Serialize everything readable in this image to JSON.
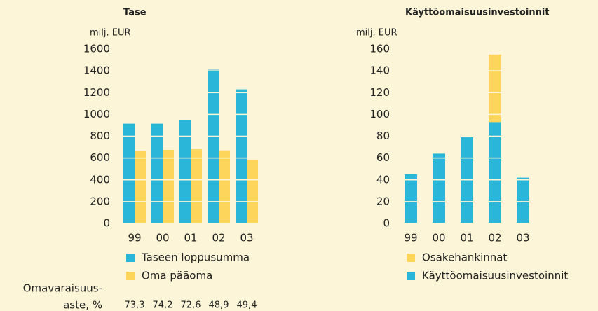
{
  "chart_data": [
    {
      "type": "bar",
      "title": "Tase",
      "ylabel": "milj. EUR",
      "categories": [
        "99",
        "00",
        "01",
        "02",
        "03"
      ],
      "series": [
        {
          "name": "Taseen loppusumma",
          "color": "#29b6d8",
          "values": [
            915,
            915,
            950,
            1410,
            1230
          ]
        },
        {
          "name": "Oma pääoma",
          "color": "#fdd55a",
          "values": [
            665,
            675,
            680,
            670,
            585
          ]
        }
      ],
      "ylim": [
        0,
        1600
      ],
      "yticks": [
        0,
        200,
        400,
        600,
        800,
        1000,
        1200,
        1400,
        1600
      ],
      "grid": true,
      "ratio": {
        "label": [
          "Omavaraisuus-",
          "aste, %"
        ],
        "values": [
          73.3,
          74.2,
          72.6,
          48.9,
          49.4
        ],
        "value_labels": [
          "73,3",
          "74,2",
          "72,6",
          "48,9",
          "49,4"
        ]
      }
    },
    {
      "type": "stacked_bar",
      "title": "Käyttöomaisuusinvestoinnit",
      "ylabel": "milj. EUR",
      "categories": [
        "99",
        "00",
        "01",
        "02",
        "03"
      ],
      "series": [
        {
          "name": "Käyttöomaisuusinvestoinnit",
          "color": "#29b6d8",
          "values": [
            45,
            64,
            79,
            93,
            42
          ]
        },
        {
          "name": "Osakehankinnat",
          "color": "#fdd55a",
          "values": [
            null,
            null,
            null,
            62,
            null
          ]
        }
      ],
      "ylim": [
        0,
        160
      ],
      "yticks": [
        0,
        20,
        40,
        60,
        80,
        100,
        120,
        140,
        160
      ],
      "grid": true
    }
  ]
}
